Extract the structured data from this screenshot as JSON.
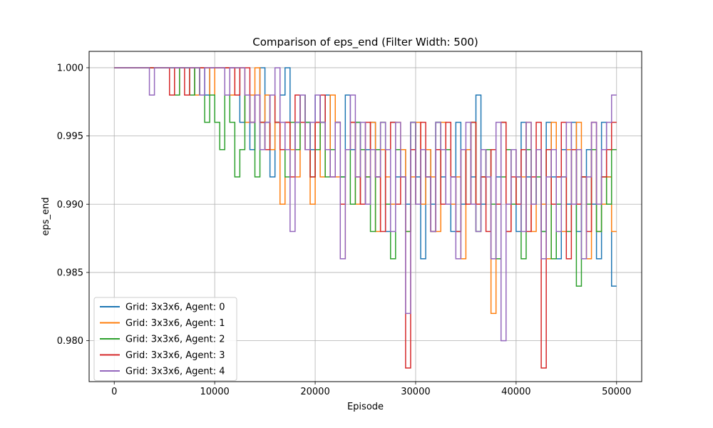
{
  "chart_data": {
    "type": "line",
    "title": "Comparison of eps_end (Filter Width: 500)",
    "xlabel": "Episode",
    "ylabel": "eps_end",
    "xlim": [
      -2500,
      52500
    ],
    "ylim": [
      0.977,
      1.0012
    ],
    "x_ticks": [
      0,
      10000,
      20000,
      30000,
      40000,
      50000
    ],
    "x_tick_labels": [
      "0",
      "10000",
      "20000",
      "30000",
      "40000",
      "50000"
    ],
    "y_ticks": [
      0.98,
      0.985,
      0.99,
      0.995,
      1.0
    ],
    "y_tick_labels": [
      "0.980",
      "0.985",
      "0.990",
      "0.995",
      "1.000"
    ],
    "grid": true,
    "legend_position": "lower-left",
    "step_width": 500,
    "x_start": 0,
    "series": [
      {
        "name": "Grid: 3x3x6, Agent: 0",
        "color": "#1f77b4",
        "values": [
          1,
          1,
          1,
          1,
          1,
          1,
          1,
          1,
          1,
          1,
          1,
          1,
          1,
          1,
          1,
          1,
          0.998,
          1,
          0.998,
          1,
          1,
          1,
          1,
          1,
          1,
          0.996,
          0.998,
          0.994,
          0.998,
          1,
          0.996,
          0.992,
          0.996,
          0.998,
          1,
          0.994,
          0.996,
          0.998,
          0.996,
          0.994,
          0.998,
          0.996,
          0.998,
          0.994,
          0.996,
          0.992,
          0.998,
          0.994,
          0.996,
          0.99,
          0.994,
          0.996,
          0.992,
          0.994,
          0.988,
          0.996,
          0.992,
          0.994,
          0.99,
          0.996,
          0.992,
          0.986,
          0.994,
          0.99,
          0.996,
          0.992,
          0.994,
          0.988,
          0.996,
          0.99,
          0.994,
          0.992,
          0.998,
          0.99,
          0.994,
          0.986,
          0.992,
          0.996,
          0.99,
          0.994,
          0.988,
          0.996,
          0.992,
          0.99,
          0.994,
          0.988,
          0.996,
          0.992,
          0.986,
          0.994,
          0.99,
          0.996,
          0.988,
          0.992,
          0.994,
          0.99,
          0.986,
          0.996,
          0.992,
          0.984
        ]
      },
      {
        "name": "Grid: 3x3x6, Agent: 1",
        "color": "#ff7f0e",
        "values": [
          1,
          1,
          1,
          1,
          1,
          1,
          1,
          1,
          1,
          1,
          1,
          1,
          0.998,
          1,
          1,
          1,
          0.998,
          1,
          1,
          0.998,
          1,
          1,
          1,
          0.998,
          1,
          1,
          0.996,
          0.998,
          1,
          0.996,
          0.998,
          0.994,
          0.996,
          0.99,
          0.996,
          0.994,
          0.992,
          0.998,
          0.994,
          0.99,
          0.996,
          0.992,
          0.994,
          0.998,
          0.992,
          0.986,
          0.994,
          0.996,
          0.99,
          0.994,
          0.992,
          0.996,
          0.988,
          0.994,
          0.992,
          0.99,
          0.996,
          0.994,
          0.988,
          0.992,
          0.996,
          0.99,
          0.994,
          0.992,
          0.988,
          0.996,
          0.994,
          0.99,
          0.992,
          0.986,
          0.994,
          0.996,
          0.99,
          0.992,
          0.994,
          0.982,
          0.99,
          0.996,
          0.988,
          0.994,
          0.99,
          0.992,
          0.996,
          0.988,
          0.994,
          0.99,
          0.986,
          0.996,
          0.992,
          0.988,
          0.994,
          0.99,
          0.996,
          0.992,
          0.986,
          0.994,
          0.988,
          0.99,
          0.992,
          0.988
        ]
      },
      {
        "name": "Grid: 3x3x6, Agent: 2",
        "color": "#2ca02c",
        "values": [
          1,
          1,
          1,
          1,
          1,
          1,
          1,
          1,
          1,
          1,
          1,
          1,
          0.998,
          1,
          1,
          0.998,
          1,
          0.998,
          0.996,
          0.998,
          0.996,
          0.994,
          0.998,
          0.996,
          0.992,
          0.994,
          0.998,
          0.996,
          0.992,
          0.996,
          0.994,
          0.998,
          0.996,
          0.994,
          0.992,
          0.996,
          0.994,
          0.998,
          0.996,
          0.992,
          0.994,
          0.996,
          0.992,
          0.994,
          0.996,
          0.992,
          0.994,
          0.99,
          0.996,
          0.994,
          0.992,
          0.988,
          0.994,
          0.996,
          0.99,
          0.986,
          0.994,
          0.992,
          0.988,
          0.996,
          0.99,
          0.994,
          0.992,
          0.988,
          0.996,
          0.99,
          0.994,
          0.992,
          0.988,
          0.994,
          0.99,
          0.996,
          0.988,
          0.992,
          0.994,
          0.99,
          0.986,
          0.992,
          0.994,
          0.99,
          0.992,
          0.986,
          0.994,
          0.99,
          0.992,
          0.988,
          0.994,
          0.986,
          0.99,
          0.992,
          0.988,
          0.994,
          0.984,
          0.992,
          0.99,
          0.994,
          0.988,
          0.992,
          0.99,
          0.994
        ]
      },
      {
        "name": "Grid: 3x3x6, Agent: 3",
        "color": "#d62728",
        "values": [
          1,
          1,
          1,
          1,
          1,
          1,
          1,
          1,
          1,
          1,
          1,
          0.998,
          1,
          1,
          0.998,
          1,
          1,
          1,
          1,
          1,
          1,
          1,
          1,
          1,
          0.998,
          1,
          1,
          0.996,
          0.998,
          0.996,
          0.994,
          0.998,
          0.996,
          0.994,
          0.996,
          0.992,
          0.998,
          0.996,
          0.994,
          0.992,
          0.996,
          0.998,
          0.994,
          0.992,
          0.996,
          0.99,
          0.994,
          0.996,
          0.992,
          0.99,
          0.996,
          0.994,
          0.992,
          0.988,
          0.994,
          0.996,
          0.99,
          0.992,
          0.978,
          0.994,
          0.99,
          0.996,
          0.992,
          0.988,
          0.994,
          0.99,
          0.996,
          0.992,
          0.988,
          0.994,
          0.99,
          0.996,
          0.99,
          0.992,
          0.988,
          0.994,
          0.99,
          0.996,
          0.988,
          0.992,
          0.99,
          0.994,
          0.988,
          0.992,
          0.996,
          0.978,
          0.994,
          0.99,
          0.992,
          0.996,
          0.986,
          0.994,
          0.99,
          0.992,
          0.988,
          0.996,
          0.99,
          0.992,
          0.994,
          0.996
        ]
      },
      {
        "name": "Grid: 3x3x6, Agent: 4",
        "color": "#9467bd",
        "values": [
          1,
          1,
          1,
          1,
          1,
          1,
          1,
          0.998,
          1,
          1,
          1,
          1,
          1,
          1,
          1,
          1,
          1,
          0.998,
          1,
          1,
          1,
          1,
          0.998,
          1,
          1,
          1,
          0.998,
          0.996,
          0.998,
          0.994,
          0.996,
          0.998,
          1,
          0.996,
          0.994,
          0.988,
          0.996,
          0.998,
          0.994,
          0.996,
          0.998,
          0.996,
          0.994,
          0.992,
          0.996,
          0.986,
          0.994,
          0.998,
          0.992,
          0.996,
          0.99,
          0.994,
          0.992,
          0.996,
          0.994,
          0.988,
          0.996,
          0.992,
          0.982,
          0.996,
          0.99,
          0.994,
          0.992,
          0.988,
          0.996,
          0.994,
          0.99,
          0.992,
          0.986,
          0.994,
          0.996,
          0.99,
          0.988,
          0.994,
          0.992,
          0.986,
          0.996,
          0.98,
          0.99,
          0.994,
          0.992,
          0.988,
          0.996,
          0.99,
          0.994,
          0.986,
          0.992,
          0.994,
          0.988,
          0.992,
          0.996,
          0.99,
          0.994,
          0.986,
          0.992,
          0.996,
          0.99,
          0.994,
          0.996,
          0.998
        ]
      }
    ]
  }
}
